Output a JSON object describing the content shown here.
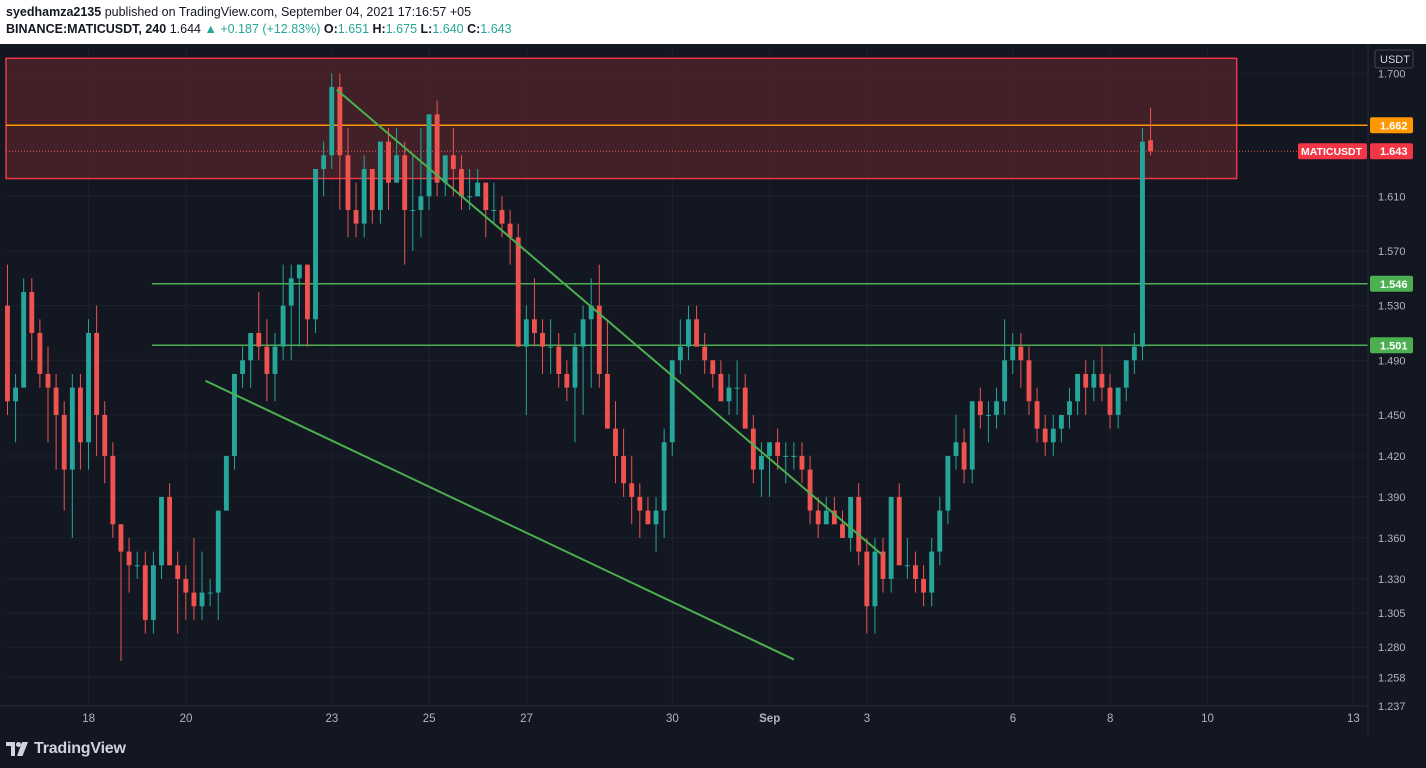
{
  "header": {
    "author": "syedhamza2135",
    "publish_text": "published on TradingView.com, September 04, 2021 17:16:57 +05",
    "symbol": "BINANCE:MATICUSDT, 240",
    "last_price": "1.644",
    "change_arrow": "▲",
    "change": "+0.187 (+12.83%)",
    "o_label": "O:",
    "o_value": "1.651",
    "h_label": "H:",
    "h_value": "1.675",
    "l_label": "L:",
    "l_value": "1.640",
    "c_label": "C:",
    "c_value": "1.643"
  },
  "footer": {
    "brand": "TradingView",
    "logo_icon": "tradingview-logo-icon"
  },
  "colors": {
    "background": "#131722",
    "grid": "#1e222d",
    "up": "#26a69a",
    "down": "#ef5350",
    "zone_fill": "#4a2228",
    "zone_border": "#f23645",
    "orange_line": "#ff9800",
    "green_line": "#4caf50",
    "price_label": "#f23645"
  },
  "chart_data": {
    "type": "candlestick",
    "symbol": "MATICUSDT",
    "currency": "USDT",
    "y_range": [
      1.237,
      1.72
    ],
    "y_ticks": [
      "1.700",
      "1.610",
      "1.570",
      "1.530",
      "1.490",
      "1.450",
      "1.420",
      "1.390",
      "1.360",
      "1.330",
      "1.305",
      "1.280",
      "1.258",
      "1.237"
    ],
    "x_ticks": [
      {
        "label": "18",
        "day": 18
      },
      {
        "label": "20",
        "day": 20
      },
      {
        "label": "23",
        "day": 23
      },
      {
        "label": "25",
        "day": 25
      },
      {
        "label": "27",
        "day": 27
      },
      {
        "label": "30",
        "day": 30
      },
      {
        "label": "Sep",
        "day": 32
      },
      {
        "label": "3",
        "day": 34
      },
      {
        "label": "6",
        "day": 37
      },
      {
        "label": "8",
        "day": 39
      },
      {
        "label": "10",
        "day": 41
      },
      {
        "label": "13",
        "day": 44
      }
    ],
    "x_range_days": [
      16.3,
      44.3
    ],
    "first_candle_day": 16.33,
    "candles_per_day": 6,
    "candles": [
      [
        1.53,
        1.56,
        1.45,
        1.46
      ],
      [
        1.46,
        1.48,
        1.43,
        1.47
      ],
      [
        1.47,
        1.55,
        1.47,
        1.54
      ],
      [
        1.54,
        1.55,
        1.49,
        1.51
      ],
      [
        1.51,
        1.52,
        1.47,
        1.48
      ],
      [
        1.48,
        1.5,
        1.43,
        1.47
      ],
      [
        1.47,
        1.48,
        1.41,
        1.45
      ],
      [
        1.45,
        1.46,
        1.38,
        1.41
      ],
      [
        1.41,
        1.48,
        1.36,
        1.47
      ],
      [
        1.47,
        1.48,
        1.41,
        1.43
      ],
      [
        1.43,
        1.52,
        1.41,
        1.51
      ],
      [
        1.51,
        1.53,
        1.42,
        1.45
      ],
      [
        1.45,
        1.46,
        1.4,
        1.42
      ],
      [
        1.42,
        1.43,
        1.36,
        1.37
      ],
      [
        1.37,
        1.37,
        1.27,
        1.35
      ],
      [
        1.35,
        1.36,
        1.32,
        1.34
      ],
      [
        1.34,
        1.35,
        1.33,
        1.34
      ],
      [
        1.34,
        1.35,
        1.29,
        1.3
      ],
      [
        1.3,
        1.35,
        1.29,
        1.34
      ],
      [
        1.34,
        1.39,
        1.33,
        1.39
      ],
      [
        1.39,
        1.4,
        1.34,
        1.34
      ],
      [
        1.34,
        1.35,
        1.29,
        1.33
      ],
      [
        1.33,
        1.34,
        1.3,
        1.32
      ],
      [
        1.32,
        1.36,
        1.3,
        1.31
      ],
      [
        1.31,
        1.35,
        1.3,
        1.32
      ],
      [
        1.32,
        1.33,
        1.31,
        1.32
      ],
      [
        1.32,
        1.38,
        1.3,
        1.38
      ],
      [
        1.38,
        1.42,
        1.38,
        1.42
      ],
      [
        1.42,
        1.48,
        1.41,
        1.48
      ],
      [
        1.48,
        1.5,
        1.47,
        1.49
      ],
      [
        1.49,
        1.51,
        1.47,
        1.51
      ],
      [
        1.51,
        1.54,
        1.49,
        1.5
      ],
      [
        1.5,
        1.52,
        1.46,
        1.48
      ],
      [
        1.48,
        1.51,
        1.46,
        1.5
      ],
      [
        1.5,
        1.56,
        1.49,
        1.53
      ],
      [
        1.53,
        1.56,
        1.49,
        1.55
      ],
      [
        1.55,
        1.56,
        1.5,
        1.56
      ],
      [
        1.56,
        1.56,
        1.5,
        1.52
      ],
      [
        1.52,
        1.63,
        1.51,
        1.63
      ],
      [
        1.63,
        1.65,
        1.61,
        1.64
      ],
      [
        1.64,
        1.7,
        1.63,
        1.69
      ],
      [
        1.69,
        1.7,
        1.6,
        1.64
      ],
      [
        1.64,
        1.66,
        1.58,
        1.6
      ],
      [
        1.6,
        1.62,
        1.58,
        1.59
      ],
      [
        1.59,
        1.64,
        1.58,
        1.63
      ],
      [
        1.63,
        1.63,
        1.59,
        1.6
      ],
      [
        1.6,
        1.65,
        1.59,
        1.65
      ],
      [
        1.65,
        1.66,
        1.6,
        1.62
      ],
      [
        1.62,
        1.66,
        1.62,
        1.64
      ],
      [
        1.64,
        1.65,
        1.56,
        1.6
      ],
      [
        1.6,
        1.64,
        1.57,
        1.6
      ],
      [
        1.6,
        1.66,
        1.58,
        1.61
      ],
      [
        1.61,
        1.67,
        1.6,
        1.67
      ],
      [
        1.67,
        1.68,
        1.61,
        1.62
      ],
      [
        1.62,
        1.64,
        1.61,
        1.64
      ],
      [
        1.64,
        1.66,
        1.61,
        1.63
      ],
      [
        1.63,
        1.64,
        1.6,
        1.61
      ],
      [
        1.61,
        1.63,
        1.6,
        1.61
      ],
      [
        1.61,
        1.63,
        1.61,
        1.62
      ],
      [
        1.62,
        1.62,
        1.58,
        1.6
      ],
      [
        1.6,
        1.62,
        1.59,
        1.6
      ],
      [
        1.6,
        1.61,
        1.58,
        1.59
      ],
      [
        1.59,
        1.6,
        1.56,
        1.58
      ],
      [
        1.58,
        1.59,
        1.5,
        1.5
      ],
      [
        1.5,
        1.53,
        1.45,
        1.52
      ],
      [
        1.52,
        1.55,
        1.5,
        1.51
      ],
      [
        1.51,
        1.52,
        1.48,
        1.5
      ],
      [
        1.5,
        1.52,
        1.48,
        1.5
      ],
      [
        1.5,
        1.51,
        1.47,
        1.48
      ],
      [
        1.48,
        1.49,
        1.46,
        1.47
      ],
      [
        1.47,
        1.51,
        1.43,
        1.5
      ],
      [
        1.5,
        1.53,
        1.45,
        1.52
      ],
      [
        1.52,
        1.55,
        1.47,
        1.53
      ],
      [
        1.53,
        1.56,
        1.47,
        1.48
      ],
      [
        1.48,
        1.52,
        1.44,
        1.44
      ],
      [
        1.44,
        1.46,
        1.4,
        1.42
      ],
      [
        1.42,
        1.44,
        1.39,
        1.4
      ],
      [
        1.4,
        1.42,
        1.37,
        1.39
      ],
      [
        1.39,
        1.4,
        1.36,
        1.38
      ],
      [
        1.38,
        1.39,
        1.37,
        1.37
      ],
      [
        1.37,
        1.39,
        1.35,
        1.38
      ],
      [
        1.38,
        1.44,
        1.36,
        1.43
      ],
      [
        1.43,
        1.49,
        1.42,
        1.49
      ],
      [
        1.49,
        1.52,
        1.48,
        1.5
      ],
      [
        1.5,
        1.53,
        1.49,
        1.52
      ],
      [
        1.52,
        1.53,
        1.5,
        1.5
      ],
      [
        1.5,
        1.51,
        1.48,
        1.49
      ],
      [
        1.49,
        1.49,
        1.47,
        1.48
      ],
      [
        1.48,
        1.49,
        1.46,
        1.46
      ],
      [
        1.46,
        1.48,
        1.45,
        1.47
      ],
      [
        1.47,
        1.49,
        1.45,
        1.47
      ],
      [
        1.47,
        1.48,
        1.44,
        1.44
      ],
      [
        1.44,
        1.45,
        1.4,
        1.41
      ],
      [
        1.41,
        1.43,
        1.39,
        1.42
      ],
      [
        1.42,
        1.43,
        1.39,
        1.43
      ],
      [
        1.43,
        1.44,
        1.41,
        1.42
      ],
      [
        1.42,
        1.43,
        1.4,
        1.42
      ],
      [
        1.42,
        1.43,
        1.41,
        1.42
      ],
      [
        1.42,
        1.43,
        1.4,
        1.41
      ],
      [
        1.41,
        1.42,
        1.37,
        1.38
      ],
      [
        1.38,
        1.39,
        1.36,
        1.37
      ],
      [
        1.37,
        1.39,
        1.37,
        1.38
      ],
      [
        1.38,
        1.39,
        1.37,
        1.37
      ],
      [
        1.37,
        1.38,
        1.36,
        1.36
      ],
      [
        1.36,
        1.39,
        1.35,
        1.39
      ],
      [
        1.39,
        1.4,
        1.34,
        1.35
      ],
      [
        1.35,
        1.36,
        1.29,
        1.31
      ],
      [
        1.31,
        1.36,
        1.29,
        1.35
      ],
      [
        1.35,
        1.36,
        1.32,
        1.33
      ],
      [
        1.33,
        1.39,
        1.32,
        1.39
      ],
      [
        1.39,
        1.4,
        1.34,
        1.34
      ],
      [
        1.34,
        1.36,
        1.33,
        1.34
      ],
      [
        1.34,
        1.35,
        1.32,
        1.33
      ],
      [
        1.33,
        1.34,
        1.31,
        1.32
      ],
      [
        1.32,
        1.36,
        1.31,
        1.35
      ],
      [
        1.35,
        1.39,
        1.34,
        1.38
      ],
      [
        1.38,
        1.42,
        1.37,
        1.42
      ],
      [
        1.42,
        1.45,
        1.41,
        1.43
      ],
      [
        1.43,
        1.44,
        1.4,
        1.41
      ],
      [
        1.41,
        1.46,
        1.4,
        1.46
      ],
      [
        1.46,
        1.47,
        1.44,
        1.45
      ],
      [
        1.45,
        1.46,
        1.43,
        1.45
      ],
      [
        1.45,
        1.47,
        1.44,
        1.46
      ],
      [
        1.46,
        1.52,
        1.45,
        1.49
      ],
      [
        1.49,
        1.51,
        1.48,
        1.5
      ],
      [
        1.5,
        1.51,
        1.47,
        1.49
      ],
      [
        1.49,
        1.5,
        1.45,
        1.46
      ],
      [
        1.46,
        1.47,
        1.43,
        1.44
      ],
      [
        1.44,
        1.45,
        1.42,
        1.43
      ],
      [
        1.43,
        1.45,
        1.42,
        1.44
      ],
      [
        1.44,
        1.45,
        1.43,
        1.45
      ],
      [
        1.45,
        1.47,
        1.44,
        1.46
      ],
      [
        1.46,
        1.48,
        1.45,
        1.48
      ],
      [
        1.48,
        1.49,
        1.45,
        1.47
      ],
      [
        1.47,
        1.49,
        1.46,
        1.48
      ],
      [
        1.48,
        1.5,
        1.46,
        1.47
      ],
      [
        1.47,
        1.48,
        1.44,
        1.45
      ],
      [
        1.45,
        1.47,
        1.44,
        1.47
      ],
      [
        1.47,
        1.49,
        1.46,
        1.49
      ],
      [
        1.49,
        1.51,
        1.48,
        1.5
      ],
      [
        1.5,
        1.66,
        1.49,
        1.65
      ],
      [
        1.651,
        1.675,
        1.64,
        1.643
      ]
    ],
    "annotations": {
      "resistance_zone": {
        "from_day": 16.3,
        "to_day": 41.6,
        "price_low": 1.623,
        "price_high": 1.711
      },
      "orange_line": {
        "price": 1.662,
        "label": "1.662"
      },
      "current_price": {
        "price": 1.643,
        "label": "1.643",
        "symbol_label": "MATICUSDT"
      },
      "horizontal_lines": [
        {
          "price": 1.546,
          "label": "1.546"
        },
        {
          "price": 1.501,
          "label": "1.501"
        }
      ],
      "horizontal_lines_from_day": 19.3,
      "trendlines": [
        {
          "x1": 23.1,
          "y1": 1.688,
          "x2": 34.3,
          "y2": 1.348
        },
        {
          "x1": 20.4,
          "y1": 1.475,
          "x2": 32.5,
          "y2": 1.271
        }
      ]
    },
    "grid": true,
    "price_axis_position": "right"
  }
}
